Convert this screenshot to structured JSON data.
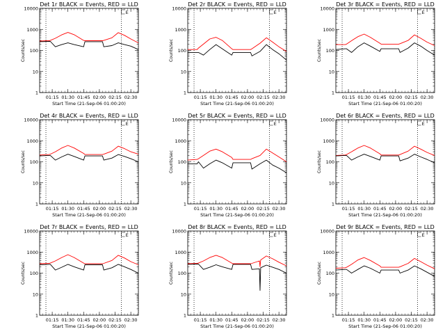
{
  "chart_data": [
    {
      "type": "line",
      "title": "Det 1r BLACK = Events, RED = LLD",
      "xlabel": "Start Time (21-Sep-06 01:00:20)",
      "ylabel": "Counts/sec",
      "yscale": "log",
      "ylim": [
        1,
        10000
      ],
      "xlim": [
        1.05,
        2.62
      ],
      "xtick_labels": [
        "01:15",
        "01:30",
        "01:45",
        "02:00",
        "02:15",
        "02:30"
      ],
      "ytick_labels": [
        "1",
        "10",
        "100",
        "1000",
        "10000"
      ],
      "vlines": [
        1.15,
        2.35,
        2.62
      ],
      "marker_label": "E",
      "series": [
        {
          "name": "Events",
          "color": "#000000",
          "x": [
            1.05,
            1.2,
            1.22,
            1.3,
            1.4,
            1.5,
            1.6,
            1.75,
            1.77,
            2.05,
            2.07,
            2.2,
            2.3,
            2.4,
            2.5,
            2.62
          ],
          "values": [
            260,
            270,
            270,
            150,
            190,
            230,
            190,
            150,
            260,
            260,
            150,
            170,
            230,
            190,
            160,
            110
          ]
        },
        {
          "name": "LLD",
          "color": "#ff0000",
          "x": [
            1.05,
            1.2,
            1.22,
            1.3,
            1.4,
            1.5,
            1.6,
            1.75,
            1.77,
            2.05,
            2.07,
            2.2,
            2.3,
            2.4,
            2.5,
            2.62
          ],
          "values": [
            280,
            290,
            300,
            380,
            550,
            720,
            560,
            300,
            290,
            290,
            300,
            400,
            700,
            520,
            350,
            230
          ]
        }
      ]
    },
    {
      "type": "line",
      "title": "Det 2r BLACK = Events, RED = LLD",
      "xlabel": "Start Time (21-Sep-06 01:00:20)",
      "ylabel": "Counts/sec",
      "yscale": "log",
      "ylim": [
        1,
        10000
      ],
      "xlim": [
        1.05,
        2.62
      ],
      "xtick_labels": [
        "01:15",
        "01:30",
        "01:45",
        "02:00",
        "02:15",
        "02:30"
      ],
      "ytick_labels": [
        "1",
        "10",
        "100",
        "1000",
        "10000"
      ],
      "vlines": [
        1.15,
        2.35,
        2.62
      ],
      "marker_label": "E",
      "series": [
        {
          "name": "Events",
          "color": "#000000",
          "x": [
            1.05,
            1.2,
            1.22,
            1.3,
            1.4,
            1.5,
            1.6,
            1.75,
            1.77,
            2.05,
            2.07,
            2.2,
            2.3,
            2.4,
            2.5,
            2.62
          ],
          "values": [
            80,
            80,
            80,
            60,
            110,
            190,
            120,
            60,
            80,
            80,
            55,
            90,
            190,
            110,
            70,
            35
          ]
        },
        {
          "name": "LLD",
          "color": "#ff0000",
          "x": [
            1.05,
            1.2,
            1.22,
            1.3,
            1.4,
            1.5,
            1.6,
            1.75,
            1.77,
            2.05,
            2.07,
            2.2,
            2.3,
            2.4,
            2.5,
            2.62
          ],
          "values": [
            110,
            110,
            130,
            200,
            350,
            420,
            300,
            120,
            110,
            110,
            120,
            220,
            400,
            250,
            150,
            90
          ]
        }
      ]
    },
    {
      "type": "line",
      "title": "Det 3r BLACK = Events, RED = LLD",
      "xlabel": "Start Time (21-Sep-06 01:00:20)",
      "ylabel": "Counts/sec",
      "yscale": "log",
      "ylim": [
        1,
        10000
      ],
      "xlim": [
        1.05,
        2.62
      ],
      "xtick_labels": [
        "01:15",
        "01:30",
        "01:45",
        "02:00",
        "02:15",
        "02:30"
      ],
      "ytick_labels": [
        "1",
        "10",
        "100",
        "1000",
        "10000"
      ],
      "vlines": [
        1.15,
        2.35,
        2.62
      ],
      "marker_label": "E",
      "series": [
        {
          "name": "Events",
          "color": "#000000",
          "x": [
            1.05,
            1.2,
            1.22,
            1.3,
            1.4,
            1.5,
            1.6,
            1.75,
            1.77,
            2.05,
            2.07,
            2.2,
            2.3,
            2.4,
            2.5,
            2.62
          ],
          "values": [
            110,
            120,
            120,
            80,
            150,
            230,
            160,
            90,
            120,
            120,
            80,
            130,
            230,
            160,
            100,
            60
          ]
        },
        {
          "name": "LLD",
          "color": "#ff0000",
          "x": [
            1.05,
            1.2,
            1.22,
            1.3,
            1.4,
            1.5,
            1.6,
            1.75,
            1.77,
            2.05,
            2.07,
            2.2,
            2.3,
            2.4,
            2.5,
            2.62
          ],
          "values": [
            190,
            190,
            200,
            290,
            450,
            600,
            420,
            220,
            200,
            200,
            210,
            300,
            550,
            380,
            250,
            170
          ]
        }
      ]
    },
    {
      "type": "line",
      "title": "Det 4r BLACK = Events, RED = LLD",
      "xlabel": "Start Time (21-Sep-06 01:00:20)",
      "ylabel": "Counts/sec",
      "yscale": "log",
      "ylim": [
        1,
        10000
      ],
      "xlim": [
        1.05,
        2.62
      ],
      "xtick_labels": [
        "01:15",
        "01:30",
        "01:45",
        "02:00",
        "02:15",
        "02:30"
      ],
      "ytick_labels": [
        "1",
        "10",
        "100",
        "1000",
        "10000"
      ],
      "vlines": [
        1.15,
        2.35,
        2.62
      ],
      "marker_label": "E",
      "series": [
        {
          "name": "Events",
          "color": "#000000",
          "x": [
            1.05,
            1.2,
            1.22,
            1.3,
            1.4,
            1.5,
            1.6,
            1.75,
            1.77,
            2.05,
            2.07,
            2.2,
            2.3,
            2.4,
            2.5,
            2.62
          ],
          "values": [
            190,
            200,
            200,
            120,
            170,
            230,
            180,
            120,
            190,
            190,
            120,
            150,
            220,
            180,
            140,
            100
          ]
        },
        {
          "name": "LLD",
          "color": "#ff0000",
          "x": [
            1.05,
            1.2,
            1.22,
            1.3,
            1.4,
            1.5,
            1.6,
            1.75,
            1.77,
            2.05,
            2.07,
            2.2,
            2.3,
            2.4,
            2.5,
            2.62
          ],
          "values": [
            210,
            220,
            230,
            300,
            450,
            600,
            450,
            250,
            220,
            220,
            230,
            320,
            550,
            420,
            300,
            230
          ]
        }
      ]
    },
    {
      "type": "line",
      "title": "Det 5r BLACK = Events, RED = LLD",
      "xlabel": "Start Time (21-Sep-06 01:00:20)",
      "ylabel": "Counts/sec",
      "yscale": "log",
      "ylim": [
        1,
        10000
      ],
      "xlim": [
        1.05,
        2.62
      ],
      "xtick_labels": [
        "01:15",
        "01:30",
        "01:45",
        "02:00",
        "02:15",
        "02:30"
      ],
      "ytick_labels": [
        "1",
        "10",
        "100",
        "1000",
        "10000"
      ],
      "vlines": [
        1.15,
        2.35,
        2.62
      ],
      "marker_label": "E",
      "series": [
        {
          "name": "Events",
          "color": "#000000",
          "x": [
            1.05,
            1.2,
            1.22,
            1.3,
            1.4,
            1.5,
            1.6,
            1.75,
            1.77,
            2.05,
            2.07,
            2.2,
            2.3,
            2.4,
            2.5,
            2.62
          ],
          "values": [
            80,
            80,
            100,
            50,
            80,
            120,
            90,
            50,
            90,
            90,
            45,
            80,
            120,
            70,
            50,
            30
          ]
        },
        {
          "name": "LLD",
          "color": "#ff0000",
          "x": [
            1.05,
            1.2,
            1.22,
            1.3,
            1.4,
            1.5,
            1.6,
            1.75,
            1.77,
            2.05,
            2.07,
            2.2,
            2.3,
            2.4,
            2.5,
            2.62
          ],
          "values": [
            120,
            130,
            140,
            200,
            320,
            400,
            300,
            160,
            130,
            130,
            140,
            200,
            400,
            260,
            170,
            100
          ]
        }
      ]
    },
    {
      "type": "line",
      "title": "Det 6r BLACK = Events, RED = LLD",
      "xlabel": "Start Time (21-Sep-06 01:00:20)",
      "ylabel": "Counts/sec",
      "yscale": "log",
      "ylim": [
        1,
        10000
      ],
      "xlim": [
        1.05,
        2.62
      ],
      "xtick_labels": [
        "01:15",
        "01:30",
        "01:45",
        "02:00",
        "02:15",
        "02:30"
      ],
      "ytick_labels": [
        "1",
        "10",
        "100",
        "1000",
        "10000"
      ],
      "vlines": [
        1.15,
        2.35,
        2.62
      ],
      "marker_label": "E",
      "series": [
        {
          "name": "Events",
          "color": "#000000",
          "x": [
            1.05,
            1.2,
            1.22,
            1.3,
            1.4,
            1.5,
            1.6,
            1.75,
            1.77,
            2.05,
            2.07,
            2.2,
            2.3,
            2.4,
            2.5,
            2.62
          ],
          "values": [
            190,
            200,
            200,
            120,
            170,
            230,
            180,
            120,
            190,
            190,
            110,
            150,
            230,
            170,
            130,
            90
          ]
        },
        {
          "name": "LLD",
          "color": "#ff0000",
          "x": [
            1.05,
            1.2,
            1.22,
            1.3,
            1.4,
            1.5,
            1.6,
            1.75,
            1.77,
            2.05,
            2.07,
            2.2,
            2.3,
            2.4,
            2.5,
            2.62
          ],
          "values": [
            200,
            210,
            220,
            300,
            450,
            600,
            450,
            240,
            210,
            210,
            220,
            320,
            550,
            400,
            280,
            200
          ]
        }
      ]
    },
    {
      "type": "line",
      "title": "Det 7r BLACK = Events, RED = LLD",
      "xlabel": "Start Time (21-Sep-06 01:00:20)",
      "ylabel": "Counts/sec",
      "yscale": "log",
      "ylim": [
        1,
        10000
      ],
      "xlim": [
        1.05,
        2.62
      ],
      "xtick_labels": [
        "01:15",
        "01:30",
        "01:45",
        "02:00",
        "02:15",
        "02:30"
      ],
      "ytick_labels": [
        "1",
        "10",
        "100",
        "1000",
        "10000"
      ],
      "vlines": [
        1.15,
        2.35,
        2.62
      ],
      "marker_label": "E",
      "series": [
        {
          "name": "Events",
          "color": "#000000",
          "x": [
            1.05,
            1.2,
            1.22,
            1.3,
            1.4,
            1.5,
            1.6,
            1.75,
            1.77,
            2.05,
            2.07,
            2.2,
            2.3,
            2.4,
            2.5,
            2.62
          ],
          "values": [
            250,
            260,
            260,
            140,
            190,
            260,
            200,
            140,
            250,
            250,
            140,
            180,
            260,
            200,
            150,
            100
          ]
        },
        {
          "name": "LLD",
          "color": "#ff0000",
          "x": [
            1.05,
            1.2,
            1.22,
            1.3,
            1.4,
            1.5,
            1.6,
            1.75,
            1.77,
            2.05,
            2.07,
            2.2,
            2.3,
            2.4,
            2.5,
            2.62
          ],
          "values": [
            280,
            290,
            300,
            380,
            550,
            750,
            550,
            300,
            280,
            280,
            290,
            400,
            700,
            520,
            350,
            250
          ]
        }
      ]
    },
    {
      "type": "line",
      "title": "Det 8r BLACK = Events, RED = LLD",
      "xlabel": "Start Time (21-Sep-06 01:00:20)",
      "ylabel": "Counts/sec",
      "yscale": "log",
      "ylim": [
        1,
        10000
      ],
      "xlim": [
        1.05,
        2.62
      ],
      "xtick_labels": [
        "01:15",
        "01:30",
        "01:45",
        "02:00",
        "02:15",
        "02:30"
      ],
      "ytick_labels": [
        "1",
        "10",
        "100",
        "1000",
        "10000"
      ],
      "vlines": [
        1.15,
        2.35,
        2.62
      ],
      "marker_label": "E",
      "series": [
        {
          "name": "Events",
          "color": "#000000",
          "x": [
            1.05,
            1.2,
            1.22,
            1.3,
            1.4,
            1.5,
            1.6,
            1.75,
            1.77,
            2.05,
            2.07,
            2.19,
            2.2,
            2.21,
            2.3,
            2.4,
            2.5,
            2.62
          ],
          "values": [
            260,
            270,
            270,
            150,
            190,
            250,
            200,
            150,
            260,
            260,
            150,
            160,
            15,
            180,
            240,
            190,
            150,
            100
          ]
        },
        {
          "name": "LLD",
          "color": "#ff0000",
          "x": [
            1.05,
            1.2,
            1.22,
            1.3,
            1.4,
            1.5,
            1.6,
            1.75,
            1.77,
            2.05,
            2.07,
            2.19,
            2.2,
            2.21,
            2.3,
            2.4,
            2.5,
            2.62
          ],
          "values": [
            280,
            290,
            300,
            380,
            550,
            700,
            550,
            300,
            280,
            280,
            290,
            380,
            200,
            420,
            650,
            480,
            330,
            220
          ]
        }
      ]
    },
    {
      "type": "line",
      "title": "Det 9r BLACK = Events, RED = LLD",
      "xlabel": "Start Time (21-Sep-06 01:00:20)",
      "ylabel": "Counts/sec",
      "yscale": "log",
      "ylim": [
        1,
        10000
      ],
      "xlim": [
        1.05,
        2.62
      ],
      "xtick_labels": [
        "01:15",
        "01:30",
        "01:45",
        "02:00",
        "02:15",
        "02:30"
      ],
      "ytick_labels": [
        "1",
        "10",
        "100",
        "1000",
        "10000"
      ],
      "vlines": [
        1.15,
        2.35,
        2.62
      ],
      "marker_label": "E",
      "series": [
        {
          "name": "Events",
          "color": "#000000",
          "x": [
            1.05,
            1.2,
            1.22,
            1.3,
            1.4,
            1.5,
            1.6,
            1.75,
            1.77,
            2.05,
            2.07,
            2.2,
            2.3,
            2.4,
            2.5,
            2.62
          ],
          "values": [
            140,
            150,
            150,
            100,
            150,
            220,
            170,
            100,
            140,
            140,
            100,
            140,
            220,
            160,
            110,
            70
          ]
        },
        {
          "name": "LLD",
          "color": "#ff0000",
          "x": [
            1.05,
            1.2,
            1.22,
            1.3,
            1.4,
            1.5,
            1.6,
            1.75,
            1.77,
            2.05,
            2.07,
            2.2,
            2.3,
            2.4,
            2.5,
            2.62
          ],
          "values": [
            170,
            180,
            190,
            260,
            420,
            550,
            400,
            220,
            190,
            190,
            200,
            290,
            500,
            350,
            240,
            160
          ]
        }
      ]
    }
  ]
}
